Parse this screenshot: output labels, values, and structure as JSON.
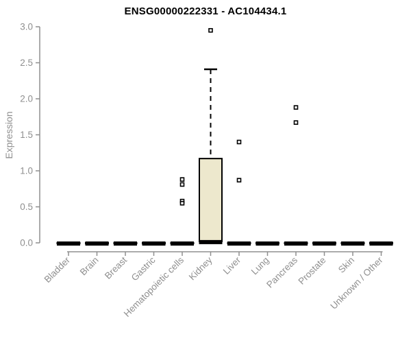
{
  "chart_data": {
    "type": "boxplot",
    "title": "ENSG00000222331 - AC104434.1",
    "ylabel": "Expression",
    "xlabel": "",
    "ylim": [
      0,
      3.0
    ],
    "yticks": [
      0.0,
      0.5,
      1.0,
      1.5,
      2.0,
      2.5,
      3.0
    ],
    "ytick_labels": [
      "0.0",
      "0.5",
      "1.0",
      "1.5",
      "2.0",
      "2.5",
      "3.0"
    ],
    "grid": false,
    "legend": false,
    "categories": [
      "Bladder",
      "Brain",
      "Breast",
      "Gastric",
      "Hematopoietic cells",
      "Kidney",
      "Liver",
      "Lung",
      "Pancreas",
      "Prostate",
      "Skin",
      "Unknown / Other"
    ],
    "boxes": [
      {
        "category": "Bladder",
        "q1": 0,
        "median": 0,
        "q3": 0,
        "whisker_low": 0,
        "whisker_high": 0,
        "outliers": []
      },
      {
        "category": "Brain",
        "q1": 0,
        "median": 0,
        "q3": 0,
        "whisker_low": 0,
        "whisker_high": 0,
        "outliers": []
      },
      {
        "category": "Breast",
        "q1": 0,
        "median": 0,
        "q3": 0,
        "whisker_low": 0,
        "whisker_high": 0,
        "outliers": []
      },
      {
        "category": "Gastric",
        "q1": 0,
        "median": 0,
        "q3": 0,
        "whisker_low": 0,
        "whisker_high": 0,
        "outliers": []
      },
      {
        "category": "Hematopoietic cells",
        "q1": 0,
        "median": 0,
        "q3": 0,
        "whisker_low": 0,
        "whisker_high": 0,
        "outliers": [
          0.88,
          0.81,
          0.58,
          0.55
        ]
      },
      {
        "category": "Kidney",
        "q1": 0.02,
        "median": 0.02,
        "q3": 1.17,
        "whisker_low": 0.02,
        "whisker_high": 2.41,
        "outliers": [
          2.95
        ]
      },
      {
        "category": "Liver",
        "q1": 0,
        "median": 0,
        "q3": 0,
        "whisker_low": 0,
        "whisker_high": 0,
        "outliers": [
          1.4,
          0.87
        ]
      },
      {
        "category": "Lung",
        "q1": 0,
        "median": 0,
        "q3": 0,
        "whisker_low": 0,
        "whisker_high": 0,
        "outliers": []
      },
      {
        "category": "Pancreas",
        "q1": 0,
        "median": 0,
        "q3": 0,
        "whisker_low": 0,
        "whisker_high": 0,
        "outliers": [
          1.88,
          1.67
        ]
      },
      {
        "category": "Prostate",
        "q1": 0,
        "median": 0,
        "q3": 0,
        "whisker_low": 0,
        "whisker_high": 0,
        "outliers": []
      },
      {
        "category": "Skin",
        "q1": 0,
        "median": 0,
        "q3": 0,
        "whisker_low": 0,
        "whisker_high": 0,
        "outliers": []
      },
      {
        "category": "Unknown / Other",
        "q1": 0,
        "median": 0,
        "q3": 0,
        "whisker_low": 0,
        "whisker_high": 0,
        "outliers": []
      }
    ],
    "colors": {
      "box_fill": "#EDE8CD",
      "box_border": "#000000",
      "median": "#000000",
      "whisker": "#000000",
      "outlier_fill": "#ffffff",
      "outlier_border": "#000000",
      "axis": "#8f8f8f",
      "tick_text": "#8f8f8f",
      "title_text": "#000000",
      "background": "#ffffff"
    }
  }
}
